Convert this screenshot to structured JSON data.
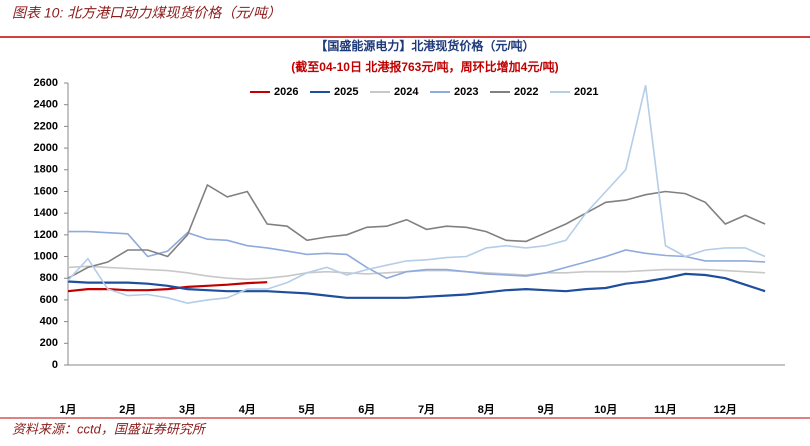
{
  "figure_title": "图表 10:  北方港口动力煤现货价格（元/吨）",
  "source": "资料来源：cctd，国盛证券研究所",
  "chart_data": {
    "type": "line",
    "title": "【国盛能源电力】北港现货价格（元/吨）",
    "subtitle": "(截至04-10日  北港报763元/吨，周环比增加4元/吨)",
    "categories": [
      "1月",
      null,
      null,
      "2月",
      null,
      null,
      "3月",
      null,
      null,
      "4月",
      null,
      null,
      "5月",
      null,
      null,
      "6月",
      null,
      null,
      "7月",
      null,
      null,
      "8月",
      null,
      null,
      "9月",
      null,
      null,
      "10月",
      null,
      null,
      "11月",
      null,
      null,
      "12月",
      null,
      null
    ],
    "ylim": [
      0,
      2600
    ],
    "yticks": [
      0,
      200,
      400,
      600,
      800,
      1000,
      1200,
      1400,
      1600,
      1800,
      2000,
      2200,
      2400,
      2600
    ],
    "series": [
      {
        "name": "2026",
        "color": "#c00000",
        "values": [
          680,
          700,
          700,
          690,
          690,
          700,
          720,
          730,
          740,
          755,
          763,
          null,
          null,
          null,
          null,
          null,
          null,
          null,
          null,
          null,
          null,
          null,
          null,
          null,
          null,
          null,
          null,
          null,
          null,
          null,
          null,
          null,
          null,
          null,
          null,
          null
        ]
      },
      {
        "name": "2025",
        "color": "#1f4e9c",
        "values": [
          770,
          760,
          760,
          760,
          750,
          730,
          700,
          690,
          680,
          680,
          680,
          670,
          660,
          640,
          620,
          620,
          620,
          620,
          630,
          640,
          650,
          670,
          690,
          700,
          690,
          680,
          700,
          710,
          750,
          770,
          800,
          840,
          830,
          800,
          740,
          680
        ]
      },
      {
        "name": "2024",
        "color": "#c8c8c8",
        "values": [
          900,
          910,
          900,
          890,
          880,
          870,
          850,
          820,
          800,
          790,
          800,
          820,
          850,
          860,
          850,
          840,
          850,
          860,
          870,
          870,
          860,
          850,
          840,
          830,
          850,
          850,
          860,
          860,
          860,
          870,
          880,
          880,
          880,
          870,
          860,
          850
        ]
      },
      {
        "name": "2023",
        "color": "#8faadc",
        "values": [
          1230,
          1230,
          1220,
          1210,
          1000,
          1050,
          1220,
          1160,
          1150,
          1100,
          1080,
          1050,
          1020,
          1030,
          1020,
          900,
          800,
          860,
          880,
          880,
          860,
          840,
          830,
          820,
          850,
          900,
          950,
          1000,
          1060,
          1030,
          1010,
          1000,
          960,
          960,
          960,
          950
        ]
      },
      {
        "name": "2022",
        "color": "#808080",
        "values": [
          800,
          900,
          950,
          1060,
          1060,
          1000,
          1200,
          1660,
          1550,
          1600,
          1300,
          1280,
          1150,
          1180,
          1200,
          1270,
          1280,
          1340,
          1250,
          1280,
          1270,
          1230,
          1150,
          1140,
          1220,
          1300,
          1400,
          1500,
          1520,
          1570,
          1600,
          1580,
          1500,
          1300,
          1380,
          1300
        ]
      },
      {
        "name": "2021",
        "color": "#b4cde8",
        "values": [
          780,
          980,
          700,
          640,
          650,
          620,
          570,
          600,
          620,
          700,
          700,
          760,
          850,
          900,
          830,
          880,
          920,
          960,
          970,
          990,
          1000,
          1080,
          1100,
          1080,
          1100,
          1150,
          1400,
          1600,
          1800,
          2580,
          1100,
          1000,
          1060,
          1080,
          1080,
          1000
        ]
      }
    ]
  }
}
